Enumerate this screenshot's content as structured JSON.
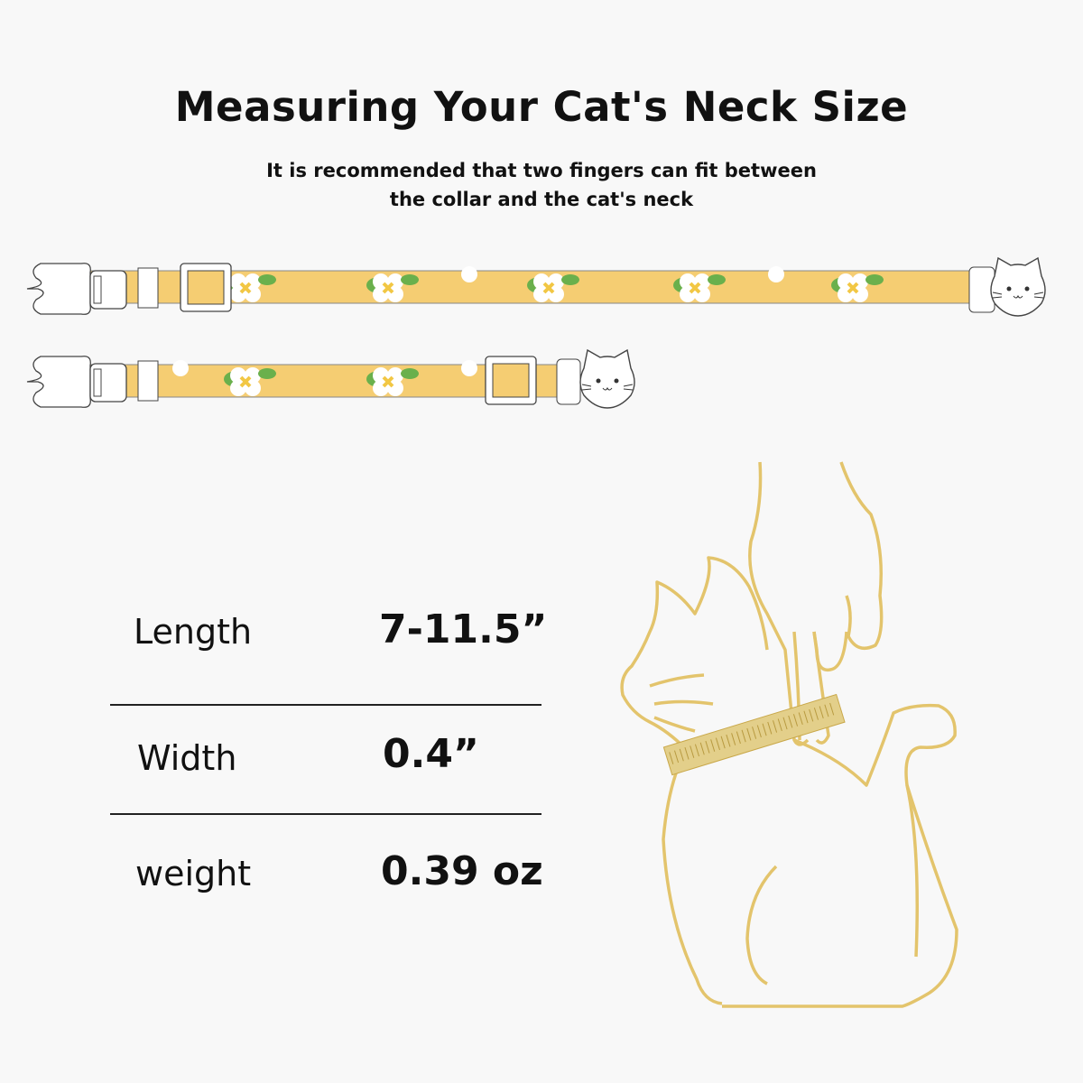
{
  "header": {
    "title": "Measuring Your Cat's Neck Size",
    "subtitle_line1": "It is recommended that two fingers can fit between",
    "subtitle_line2": "the collar and the cat's neck"
  },
  "specs": [
    {
      "label": "Length",
      "value": "7-11.5”"
    },
    {
      "label": "Width",
      "value": "0.4”"
    },
    {
      "label": "weight",
      "value": "0.39 oz"
    }
  ],
  "colors": {
    "strap": "#f5cd72",
    "leaf": "#6ab04c",
    "flower": "#ffffff",
    "outline": "#e3c46c",
    "background": "#f8f8f8"
  },
  "icons": [
    "collar-buckle-icon",
    "cat-face-charm-icon",
    "cat-outline-illustration",
    "hand-illustration",
    "measuring-tape-icon"
  ]
}
